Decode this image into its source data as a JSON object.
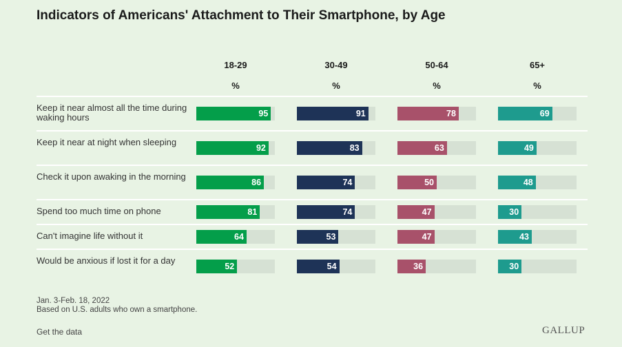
{
  "title": "Indicators of Americans' Attachment to Their Smartphone, by Age",
  "footnotes": [
    "Jan. 3-Feb. 18, 2022",
    "Based on U.S. adults who own a smartphone."
  ],
  "link_label": "Get the data",
  "logo_text": "GALLUP",
  "chart_data": {
    "type": "bar",
    "orientation": "horizontal",
    "title": "Indicators of Americans' Attachment to Their Smartphone, by Age",
    "unit_label": "%",
    "xlim": [
      0,
      100
    ],
    "grid": false,
    "categories": [
      "Keep it near almost all the time during waking hours",
      "Keep it near at night when sleeping",
      "Check it upon awaking in the morning",
      "Spend too much time on phone",
      "Can't imagine life without it",
      "Would be anxious if lost it for a day"
    ],
    "series": [
      {
        "name": "18-29",
        "color": "#049e4a",
        "values": [
          95,
          92,
          86,
          81,
          64,
          52
        ]
      },
      {
        "name": "30-49",
        "color": "#1e3357",
        "values": [
          91,
          83,
          74,
          74,
          53,
          54
        ]
      },
      {
        "name": "50-64",
        "color": "#a8516a",
        "values": [
          78,
          63,
          50,
          47,
          47,
          36
        ]
      },
      {
        "name": "65+",
        "color": "#1e9b8e",
        "values": [
          69,
          49,
          48,
          30,
          43,
          30
        ]
      }
    ],
    "track_color": "#d6e1d4"
  }
}
